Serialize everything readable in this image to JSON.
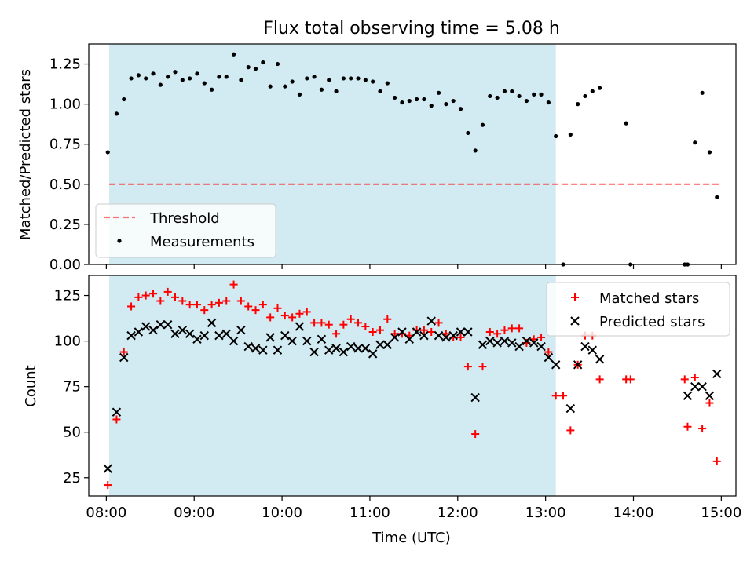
{
  "title": "Flux total observing time = 5.08 h",
  "colors": {
    "band": "#add8e6",
    "threshold": "#ff0000",
    "matched": "#ff0000",
    "predicted": "#000000",
    "points": "#000000"
  },
  "chart_data": [
    {
      "type": "scatter",
      "ylabel": "Matched/Predicted stars",
      "xlim": [
        "07:48",
        "15:10"
      ],
      "ylim": [
        0,
        1.375
      ],
      "yticks": [
        0.0,
        0.25,
        0.5,
        0.75,
        1.0,
        1.25
      ],
      "ytick_labels": [
        "0.00",
        "0.25",
        "0.50",
        "0.75",
        "1.00",
        "1.25"
      ],
      "shaded_span": [
        "08:02",
        "13:07"
      ],
      "legend": {
        "position": "lower-left",
        "threshold_label": "Threshold",
        "measurements_label": "Measurements"
      },
      "threshold": {
        "value": 0.5,
        "x": [
          "08:02",
          "14:59"
        ],
        "style": "dashed"
      },
      "series": [
        {
          "name": "Measurements",
          "marker": "dot",
          "x": [
            "08:01",
            "08:07",
            "08:12",
            "08:17",
            "08:22",
            "08:27",
            "08:32",
            "08:37",
            "08:42",
            "08:47",
            "08:52",
            "08:57",
            "09:02",
            "09:07",
            "09:12",
            "09:17",
            "09:22",
            "09:27",
            "09:32",
            "09:37",
            "09:42",
            "09:47",
            "09:52",
            "09:57",
            "10:02",
            "10:07",
            "10:12",
            "10:17",
            "10:22",
            "10:27",
            "10:32",
            "10:37",
            "10:42",
            "10:47",
            "10:52",
            "10:57",
            "11:02",
            "11:07",
            "11:12",
            "11:17",
            "11:22",
            "11:27",
            "11:32",
            "11:37",
            "11:42",
            "11:47",
            "11:52",
            "11:57",
            "12:02",
            "12:07",
            "12:12",
            "12:17",
            "12:22",
            "12:27",
            "12:32",
            "12:37",
            "12:42",
            "12:47",
            "12:52",
            "12:57",
            "13:02",
            "13:07",
            "13:12",
            "13:17",
            "13:22",
            "13:27",
            "13:32",
            "13:37",
            "13:55",
            "13:58",
            "14:35",
            "14:37",
            "14:42",
            "14:47",
            "14:52",
            "14:57"
          ],
          "y": [
            0.7,
            0.94,
            1.03,
            1.16,
            1.18,
            1.16,
            1.19,
            1.12,
            1.17,
            1.2,
            1.15,
            1.16,
            1.19,
            1.13,
            1.09,
            1.17,
            1.17,
            1.31,
            1.15,
            1.23,
            1.22,
            1.26,
            1.11,
            1.25,
            1.11,
            1.14,
            1.06,
            1.16,
            1.17,
            1.09,
            1.15,
            1.08,
            1.16,
            1.16,
            1.16,
            1.15,
            1.14,
            1.08,
            1.13,
            1.04,
            1.01,
            1.02,
            1.03,
            1.03,
            0.99,
            1.07,
            1.0,
            1.02,
            0.97,
            0.82,
            0.71,
            0.87,
            1.05,
            1.04,
            1.08,
            1.08,
            1.05,
            1.02,
            1.06,
            1.06,
            1.01,
            0.8,
            0.0,
            0.81,
            1.0,
            1.05,
            1.08,
            1.1,
            0.88,
            0.0,
            0.0,
            0.0,
            0.76,
            1.07,
            0.7,
            0.42
          ]
        }
      ]
    },
    {
      "type": "scatter",
      "xlabel": "Time (UTC)",
      "ylabel": "Count",
      "xlim": [
        "07:48",
        "15:10"
      ],
      "ylim": [
        15,
        136
      ],
      "yticks": [
        25,
        50,
        75,
        100,
        125
      ],
      "xticks": [
        "08:00",
        "09:00",
        "10:00",
        "11:00",
        "12:00",
        "13:00",
        "14:00",
        "15:00"
      ],
      "shaded_span": [
        "08:02",
        "13:07"
      ],
      "legend": {
        "position": "upper-right"
      },
      "series": [
        {
          "name": "Matched stars",
          "marker": "plus",
          "x": [
            "08:01",
            "08:07",
            "08:12",
            "08:17",
            "08:22",
            "08:27",
            "08:32",
            "08:37",
            "08:42",
            "08:47",
            "08:52",
            "08:57",
            "09:02",
            "09:07",
            "09:12",
            "09:17",
            "09:22",
            "09:27",
            "09:32",
            "09:37",
            "09:42",
            "09:47",
            "09:52",
            "09:57",
            "10:02",
            "10:07",
            "10:12",
            "10:17",
            "10:22",
            "10:27",
            "10:32",
            "10:37",
            "10:42",
            "10:47",
            "10:52",
            "10:57",
            "11:02",
            "11:07",
            "11:12",
            "11:17",
            "11:22",
            "11:27",
            "11:32",
            "11:37",
            "11:42",
            "11:47",
            "11:52",
            "11:57",
            "12:02",
            "12:07",
            "12:12",
            "12:17",
            "12:22",
            "12:27",
            "12:32",
            "12:37",
            "12:42",
            "12:47",
            "12:52",
            "12:57",
            "13:02",
            "13:07",
            "13:12",
            "13:17",
            "13:22",
            "13:27",
            "13:32",
            "13:37",
            "13:55",
            "13:58",
            "14:35",
            "14:37",
            "14:42",
            "14:47",
            "14:52",
            "14:57"
          ],
          "y": [
            21,
            57,
            94,
            119,
            124,
            125,
            126,
            122,
            127,
            124,
            122,
            120,
            120,
            117,
            120,
            121,
            122,
            131,
            122,
            119,
            117,
            120,
            113,
            118,
            114,
            113,
            115,
            116,
            110,
            110,
            109,
            104,
            109,
            112,
            110,
            108,
            105,
            106,
            112,
            104,
            104,
            103,
            106,
            106,
            105,
            110,
            104,
            102,
            102,
            86,
            49,
            86,
            105,
            104,
            106,
            107,
            107,
            99,
            101,
            102,
            94,
            70,
            70,
            51,
            87,
            103,
            103,
            79,
            79,
            79,
            79,
            53,
            80,
            52,
            66,
            34
          ]
        },
        {
          "name": "Predicted stars",
          "marker": "x",
          "x": [
            "08:01",
            "08:07",
            "08:12",
            "08:17",
            "08:22",
            "08:27",
            "08:32",
            "08:37",
            "08:42",
            "08:47",
            "08:52",
            "08:57",
            "09:02",
            "09:07",
            "09:12",
            "09:17",
            "09:22",
            "09:27",
            "09:32",
            "09:37",
            "09:42",
            "09:47",
            "09:52",
            "09:57",
            "10:02",
            "10:07",
            "10:12",
            "10:17",
            "10:22",
            "10:27",
            "10:32",
            "10:37",
            "10:42",
            "10:47",
            "10:52",
            "10:57",
            "11:02",
            "11:07",
            "11:12",
            "11:17",
            "11:22",
            "11:27",
            "11:32",
            "11:37",
            "11:42",
            "11:47",
            "11:52",
            "11:57",
            "12:02",
            "12:07",
            "12:12",
            "12:17",
            "12:22",
            "12:27",
            "12:32",
            "12:37",
            "12:42",
            "12:47",
            "12:52",
            "12:57",
            "13:02",
            "13:07",
            "13:17",
            "13:22",
            "13:27",
            "13:32",
            "13:37",
            "14:37",
            "14:42",
            "14:47",
            "14:52",
            "14:57"
          ],
          "y": [
            30,
            61,
            91,
            103,
            105,
            108,
            106,
            109,
            109,
            104,
            106,
            104,
            101,
            103,
            110,
            103,
            104,
            100,
            106,
            97,
            96,
            95,
            102,
            95,
            103,
            100,
            108,
            100,
            94,
            101,
            95,
            96,
            94,
            97,
            96,
            96,
            93,
            98,
            98,
            102,
            105,
            101,
            105,
            103,
            111,
            103,
            102,
            103,
            105,
            105,
            69,
            98,
            100,
            99,
            100,
            99,
            97,
            100,
            99,
            97,
            91,
            87,
            63,
            87,
            97,
            95,
            90,
            70,
            75,
            75,
            70,
            82
          ]
        }
      ]
    }
  ]
}
